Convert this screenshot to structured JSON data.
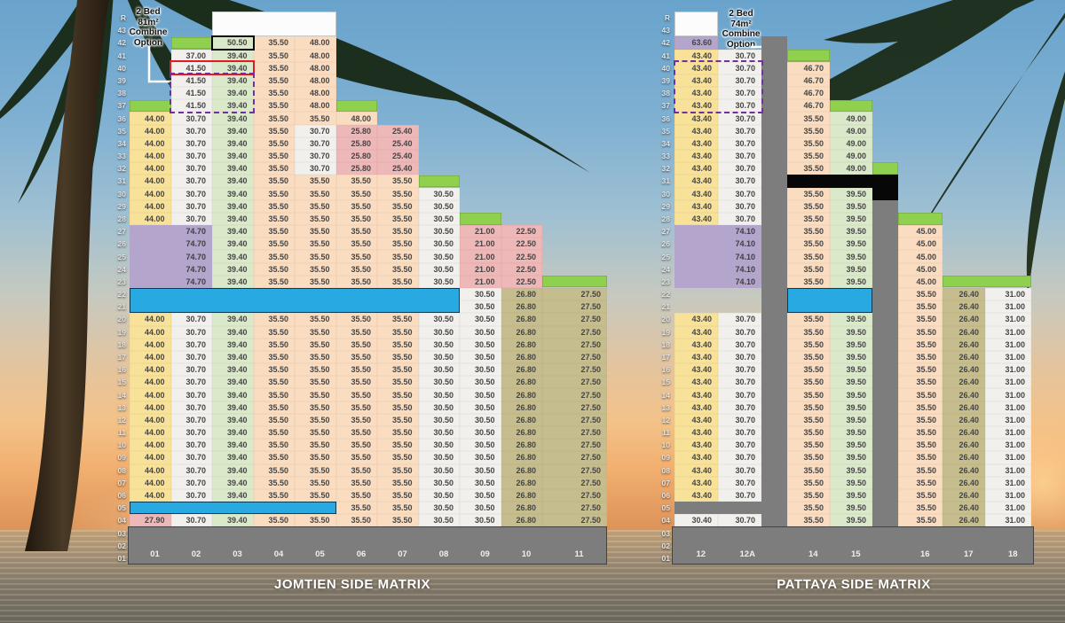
{
  "palette": {
    "yellow": "#f8e29a",
    "white_cell": "#f1f0ed",
    "light_green": "#dbe9cb",
    "peach": "#fadcc1",
    "pink": "#eeb8b8",
    "olive": "#c6bd8e",
    "purple": "#b4a5cc",
    "cap_green": "#90d04f",
    "bar_blue": "#28a9e1",
    "structure_gray": "#7d7d7d",
    "bar_black": "#070707",
    "value_text": "#454545",
    "footer_text": "#efefef",
    "title_text": "#ffffff"
  },
  "floors": [
    "R",
    "43",
    "42",
    "41",
    "40",
    "39",
    "38",
    "37",
    "36",
    "35",
    "34",
    "33",
    "32",
    "31",
    "30",
    "29",
    "28",
    "27",
    "26",
    "25",
    "24",
    "23",
    "22",
    "21",
    "20",
    "19",
    "18",
    "17",
    "16",
    "15",
    "14",
    "13",
    "12",
    "11",
    "10",
    "09",
    "08",
    "07",
    "06",
    "05",
    "04",
    "03",
    "02",
    "01"
  ],
  "left_matrix": {
    "title": "JOMTIEN SIDE MATRIX",
    "annotation": {
      "lines": [
        "2 Bed",
        "81m²",
        "Combine",
        "Option"
      ]
    },
    "column_labels": [
      "01",
      "02",
      "03",
      "04",
      "05",
      "06",
      "07",
      "08",
      "09",
      "10",
      "11"
    ],
    "segments": [
      {
        "col": "01",
        "from": "36",
        "to": "28",
        "value": "44.00",
        "bg": "yellow"
      },
      {
        "col": "01",
        "from": "20",
        "to": "06",
        "value": "44.00",
        "bg": "yellow"
      },
      {
        "col": "01",
        "from": "04",
        "to": "04",
        "value": "27.90",
        "bg": "pink"
      },
      {
        "col": "02",
        "from": "41",
        "to": "41",
        "value": "37.00",
        "bg": "white"
      },
      {
        "col": "02",
        "from": "40",
        "to": "37",
        "value": "41.50",
        "bg": "white"
      },
      {
        "col": "02",
        "from": "36",
        "to": "28",
        "value": "30.70",
        "bg": "white"
      },
      {
        "col": "02",
        "from": "20",
        "to": "06",
        "value": "30.70",
        "bg": "white"
      },
      {
        "col": "02",
        "from": "04",
        "to": "04",
        "value": "30.70",
        "bg": "white"
      },
      {
        "col": "03",
        "from": "42",
        "to": "42",
        "value": "50.50",
        "bg": "green"
      },
      {
        "col": "03",
        "from": "41",
        "to": "23",
        "value": "39.40",
        "bg": "green"
      },
      {
        "col": "03",
        "from": "20",
        "to": "06",
        "value": "39.40",
        "bg": "green"
      },
      {
        "col": "03",
        "from": "04",
        "to": "04",
        "value": "39.40",
        "bg": "green"
      },
      {
        "col": "04",
        "from": "42",
        "to": "23",
        "value": "35.50",
        "bg": "peach"
      },
      {
        "col": "04",
        "from": "20",
        "to": "06",
        "value": "35.50",
        "bg": "peach"
      },
      {
        "col": "04",
        "from": "04",
        "to": "04",
        "value": "35.50",
        "bg": "peach"
      },
      {
        "col": "05",
        "from": "42",
        "to": "37",
        "value": "48.00",
        "bg": "peach"
      },
      {
        "col": "05",
        "from": "36",
        "to": "36",
        "value": "35.50",
        "bg": "peach"
      },
      {
        "col": "05",
        "from": "35",
        "to": "32",
        "value": "30.70",
        "bg": "white"
      },
      {
        "col": "05",
        "from": "31",
        "to": "23",
        "value": "35.50",
        "bg": "peach"
      },
      {
        "col": "05",
        "from": "20",
        "to": "06",
        "value": "35.50",
        "bg": "peach"
      },
      {
        "col": "05",
        "from": "04",
        "to": "04",
        "value": "35.50",
        "bg": "peach"
      },
      {
        "col": "06",
        "from": "36",
        "to": "36",
        "value": "48.00",
        "bg": "peach"
      },
      {
        "col": "06",
        "from": "35",
        "to": "32",
        "value": "25.80",
        "bg": "pink"
      },
      {
        "col": "06",
        "from": "31",
        "to": "23",
        "value": "35.50",
        "bg": "peach"
      },
      {
        "col": "06",
        "from": "20",
        "to": "04",
        "value": "35.50",
        "bg": "peach"
      },
      {
        "col": "07",
        "from": "35",
        "to": "32",
        "value": "25.40",
        "bg": "pink"
      },
      {
        "col": "07",
        "from": "31",
        "to": "23",
        "value": "35.50",
        "bg": "peach"
      },
      {
        "col": "07",
        "from": "20",
        "to": "04",
        "value": "35.50",
        "bg": "peach"
      },
      {
        "col": "08",
        "from": "30",
        "to": "23",
        "value": "30.50",
        "bg": "white"
      },
      {
        "col": "08",
        "from": "20",
        "to": "04",
        "value": "30.50",
        "bg": "white"
      },
      {
        "col": "09",
        "from": "27",
        "to": "23",
        "value": "21.00",
        "bg": "pink"
      },
      {
        "col": "09",
        "from": "22",
        "to": "04",
        "value": "30.50",
        "bg": "white"
      },
      {
        "col": "10",
        "from": "27",
        "to": "23",
        "value": "22.50",
        "bg": "pink"
      },
      {
        "col": "10",
        "from": "22",
        "to": "04",
        "value": "26.80",
        "bg": "olive"
      },
      {
        "col": "11",
        "from": "22",
        "to": "04",
        "value": "27.50",
        "bg": "olive"
      }
    ],
    "caps": [
      {
        "cols": [
          "02",
          "02"
        ],
        "floor": "42"
      },
      {
        "cols": [
          "01",
          "01"
        ],
        "floor": "37"
      },
      {
        "cols": [
          "06",
          "06"
        ],
        "floor": "37"
      },
      {
        "cols": [
          "08",
          "08"
        ],
        "floor": "31"
      },
      {
        "cols": [
          "09",
          "09"
        ],
        "floor": "28"
      },
      {
        "cols": [
          "11",
          "11"
        ],
        "floor": "23"
      }
    ],
    "merged": [
      {
        "cols": [
          "01",
          "02"
        ],
        "from": "27",
        "to": "23",
        "value": "74.70",
        "bg": "purple"
      }
    ],
    "white_boxes": [
      {
        "cols": [
          "03",
          "05"
        ],
        "from": "R",
        "to": "43"
      }
    ],
    "blue_bars": [
      {
        "cols": [
          "01",
          "08"
        ],
        "from": "22",
        "to": "21"
      },
      {
        "cols": [
          "01",
          "05"
        ],
        "from": "05",
        "to": "05"
      }
    ],
    "gray_blocks": [],
    "black_bars": [],
    "outlines": [
      {
        "style": "black",
        "cols": [
          "03",
          "03"
        ],
        "from": "42",
        "to": "42"
      },
      {
        "style": "red",
        "cols": [
          "02",
          "03"
        ],
        "from": "40",
        "to": "40"
      },
      {
        "style": "dash",
        "cols": [
          "02",
          "03"
        ],
        "from": "39",
        "to": "37"
      }
    ]
  },
  "right_matrix": {
    "title": "PATTAYA SIDE MATRIX",
    "annotation": {
      "lines": [
        "2 Bed",
        "74m²",
        "Combine",
        "Option"
      ]
    },
    "column_labels": [
      "12",
      "12A",
      "14",
      "15",
      "16",
      "17",
      "18"
    ],
    "segments": [
      {
        "col": "12",
        "from": "42",
        "to": "42",
        "value": "63.60",
        "bg": "purple"
      },
      {
        "col": "12",
        "from": "41",
        "to": "28",
        "value": "43.40",
        "bg": "yellow"
      },
      {
        "col": "12",
        "from": "20",
        "to": "06",
        "value": "43.40",
        "bg": "yellow"
      },
      {
        "col": "12",
        "from": "04",
        "to": "04",
        "value": "30.40",
        "bg": "white"
      },
      {
        "col": "12A",
        "from": "41",
        "to": "28",
        "value": "30.70",
        "bg": "white"
      },
      {
        "col": "12A",
        "from": "20",
        "to": "06",
        "value": "30.70",
        "bg": "white"
      },
      {
        "col": "12A",
        "from": "04",
        "to": "04",
        "value": "30.70",
        "bg": "white"
      },
      {
        "col": "14",
        "from": "40",
        "to": "37",
        "value": "46.70",
        "bg": "peach"
      },
      {
        "col": "14",
        "from": "36",
        "to": "32",
        "value": "35.50",
        "bg": "peach"
      },
      {
        "col": "14",
        "from": "30",
        "to": "23",
        "value": "35.50",
        "bg": "peach"
      },
      {
        "col": "14",
        "from": "20",
        "to": "04",
        "value": "35.50",
        "bg": "peach"
      },
      {
        "col": "15",
        "from": "36",
        "to": "32",
        "value": "49.00",
        "bg": "green"
      },
      {
        "col": "15",
        "from": "30",
        "to": "23",
        "value": "39.50",
        "bg": "green"
      },
      {
        "col": "15",
        "from": "20",
        "to": "04",
        "value": "39.50",
        "bg": "green"
      },
      {
        "col": "16",
        "from": "27",
        "to": "23",
        "value": "45.00",
        "bg": "peach"
      },
      {
        "col": "16",
        "from": "22",
        "to": "04",
        "value": "35.50",
        "bg": "peach"
      },
      {
        "col": "17",
        "from": "22",
        "to": "04",
        "value": "26.40",
        "bg": "olive"
      },
      {
        "col": "18",
        "from": "22",
        "to": "04",
        "value": "31.00",
        "bg": "white"
      }
    ],
    "caps": [
      {
        "cols": [
          "14",
          "14"
        ],
        "floor": "41"
      },
      {
        "cols": [
          "15",
          "15"
        ],
        "floor": "37"
      },
      {
        "cols": [
          "16",
          "16"
        ],
        "floor": "28"
      },
      {
        "cols": [
          "17",
          "18"
        ],
        "floor": "23"
      }
    ],
    "merged": [
      {
        "cols": [
          "12",
          "12A"
        ],
        "from": "27",
        "to": "23",
        "value": "74.10",
        "bg": "purple"
      }
    ],
    "white_boxes": [
      {
        "cols": [
          "12",
          "12"
        ],
        "from": "R",
        "to": "43"
      }
    ],
    "blue_bars": [
      {
        "cols": [
          "14",
          "15"
        ],
        "from": "22",
        "to": "21"
      }
    ],
    "gray_blocks": [
      {
        "cols": [
          "12",
          "12A"
        ],
        "from": "05",
        "to": "05"
      }
    ],
    "black_bars": [
      {
        "cols": [
          "14",
          "15"
        ],
        "from": "31",
        "to": "31"
      }
    ],
    "dividers": [
      {
        "index": 0,
        "segments": [
          {
            "from": "42",
            "to": "01",
            "bg": "gray"
          }
        ]
      },
      {
        "index": 1,
        "segments": [
          {
            "from": "32",
            "to": "32",
            "bg": "cap"
          },
          {
            "from": "31",
            "to": "30",
            "bg": "black"
          },
          {
            "from": "29",
            "to": "01",
            "bg": "gray"
          }
        ]
      }
    ],
    "outlines": [
      {
        "style": "dash",
        "cols": [
          "12",
          "12A"
        ],
        "from": "40",
        "to": "37"
      }
    ]
  }
}
